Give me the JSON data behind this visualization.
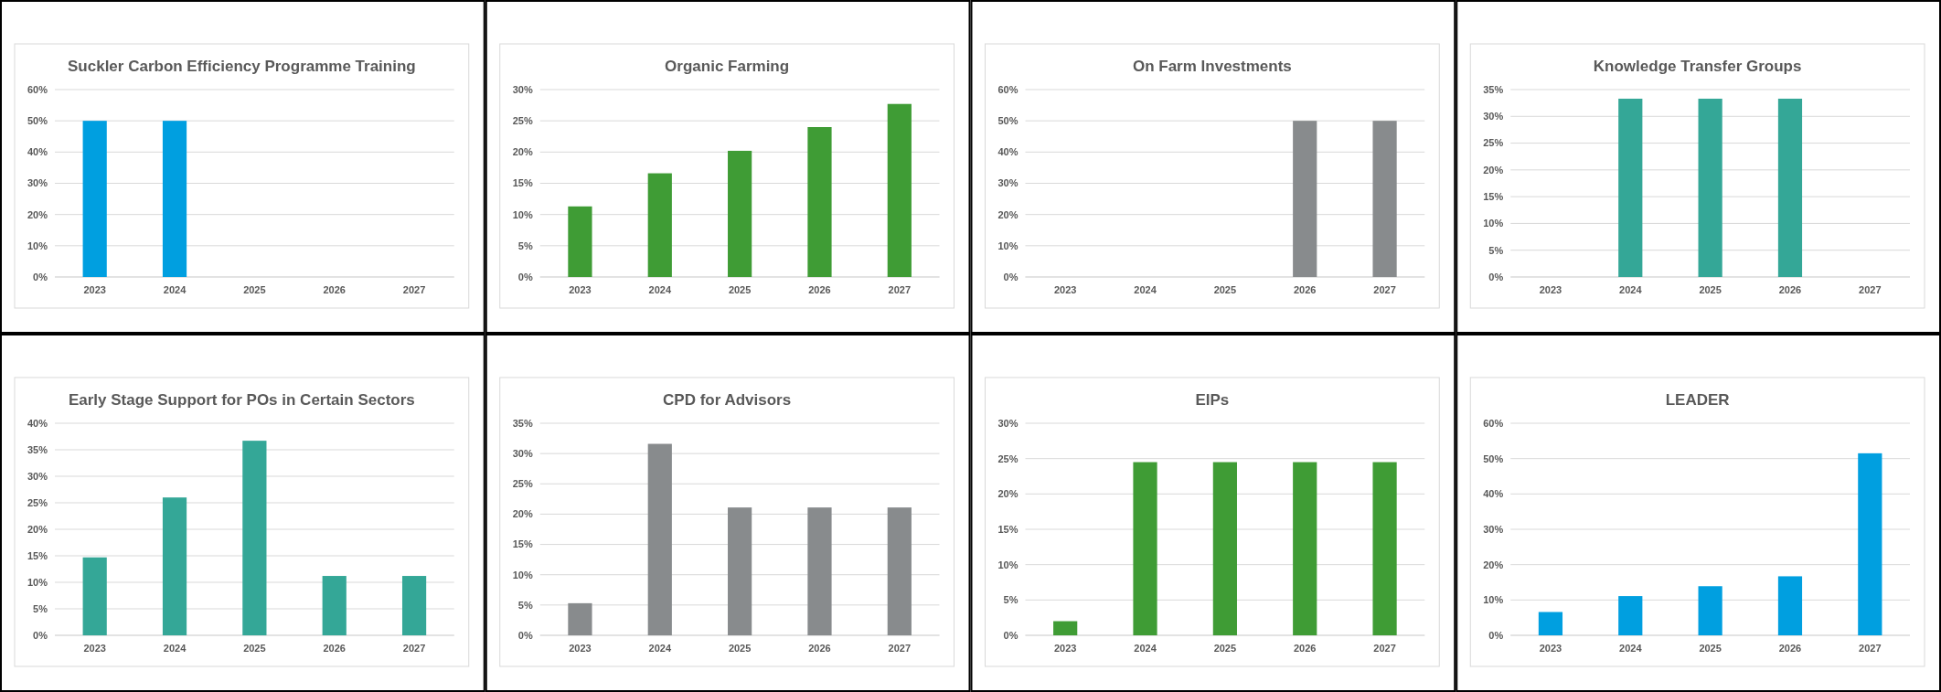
{
  "chart_data": [
    {
      "type": "bar",
      "title": "Suckler Carbon Efficiency Programme Training",
      "categories": [
        "2023",
        "2024",
        "2025",
        "2026",
        "2027"
      ],
      "values": [
        50,
        50,
        0,
        0,
        0
      ],
      "color": "#009fe0",
      "ylim": [
        0,
        60
      ],
      "yticks": [
        {
          "value": 0,
          "label": "0%"
        },
        {
          "value": 10,
          "label": "10%"
        },
        {
          "value": 20,
          "label": "20%"
        },
        {
          "value": 30,
          "label": "30%"
        },
        {
          "value": 40,
          "label": "40%"
        },
        {
          "value": 50,
          "label": "50%"
        },
        {
          "value": 60,
          "label": "60%"
        }
      ],
      "grid": "y"
    },
    {
      "type": "bar",
      "title": "Organic Farming",
      "categories": [
        "2023",
        "2024",
        "2025",
        "2026",
        "2027"
      ],
      "values": [
        11.3,
        16.6,
        20.2,
        24.0,
        27.7
      ],
      "color": "#3f9c35",
      "ylim": [
        0,
        30
      ],
      "yticks": [
        {
          "value": 0,
          "label": "0%"
        },
        {
          "value": 5,
          "label": "5%"
        },
        {
          "value": 10,
          "label": "10%"
        },
        {
          "value": 15,
          "label": "15%"
        },
        {
          "value": 20,
          "label": "20%"
        },
        {
          "value": 25,
          "label": "25%"
        },
        {
          "value": 30,
          "label": "30%"
        }
      ],
      "grid": "y"
    },
    {
      "type": "bar",
      "title": "On Farm Investments",
      "categories": [
        "2023",
        "2024",
        "2025",
        "2026",
        "2027"
      ],
      "values": [
        0,
        0,
        0,
        50,
        50
      ],
      "color": "#888b8d",
      "ylim": [
        0,
        60
      ],
      "yticks": [
        {
          "value": 0,
          "label": "0%"
        },
        {
          "value": 10,
          "label": "10%"
        },
        {
          "value": 20,
          "label": "20%"
        },
        {
          "value": 30,
          "label": "30%"
        },
        {
          "value": 40,
          "label": "40%"
        },
        {
          "value": 50,
          "label": "50%"
        },
        {
          "value": 60,
          "label": "60%"
        }
      ],
      "grid": "y"
    },
    {
      "type": "bar",
      "title": "Knowledge Transfer Groups",
      "categories": [
        "2023",
        "2024",
        "2025",
        "2026",
        "2027"
      ],
      "values": [
        0,
        33.3,
        33.3,
        33.3,
        0
      ],
      "color": "#34a797",
      "ylim": [
        0,
        35
      ],
      "yticks": [
        {
          "value": 0,
          "label": "0%"
        },
        {
          "value": 5,
          "label": "5%"
        },
        {
          "value": 10,
          "label": "10%"
        },
        {
          "value": 15,
          "label": "15%"
        },
        {
          "value": 20,
          "label": "20%"
        },
        {
          "value": 25,
          "label": "25%"
        },
        {
          "value": 30,
          "label": "30%"
        },
        {
          "value": 35,
          "label": "35%"
        }
      ],
      "grid": "y"
    },
    {
      "type": "bar",
      "title": "Early Stage Support  for POs in Certain Sectors",
      "categories": [
        "2023",
        "2024",
        "2025",
        "2026",
        "2027"
      ],
      "values": [
        14.7,
        26.0,
        36.7,
        11.2,
        11.2
      ],
      "color": "#34a797",
      "ylim": [
        0,
        40
      ],
      "yticks": [
        {
          "value": 0,
          "label": "0%"
        },
        {
          "value": 5,
          "label": "5%"
        },
        {
          "value": 10,
          "label": "10%"
        },
        {
          "value": 15,
          "label": "15%"
        },
        {
          "value": 20,
          "label": "20%"
        },
        {
          "value": 25,
          "label": "25%"
        },
        {
          "value": 30,
          "label": "30%"
        },
        {
          "value": 35,
          "label": "35%"
        },
        {
          "value": 40,
          "label": "40%"
        }
      ],
      "grid": "y"
    },
    {
      "type": "bar",
      "title": "CPD for Advisors",
      "categories": [
        "2023",
        "2024",
        "2025",
        "2026",
        "2027"
      ],
      "values": [
        5.3,
        31.6,
        21.1,
        21.1,
        21.1
      ],
      "color": "#888b8d",
      "ylim": [
        0,
        35
      ],
      "yticks": [
        {
          "value": 0,
          "label": "0%"
        },
        {
          "value": 5,
          "label": "5%"
        },
        {
          "value": 10,
          "label": "10%"
        },
        {
          "value": 15,
          "label": "15%"
        },
        {
          "value": 20,
          "label": "20%"
        },
        {
          "value": 25,
          "label": "25%"
        },
        {
          "value": 30,
          "label": "30%"
        },
        {
          "value": 35,
          "label": "35%"
        }
      ],
      "grid": "y"
    },
    {
      "type": "bar",
      "title": "EIPs",
      "categories": [
        "2023",
        "2024",
        "2025",
        "2026",
        "2027"
      ],
      "values": [
        2.0,
        24.5,
        24.5,
        24.5,
        24.5
      ],
      "color": "#3f9c35",
      "ylim": [
        0,
        30
      ],
      "yticks": [
        {
          "value": 0,
          "label": "0%"
        },
        {
          "value": 5,
          "label": "5%"
        },
        {
          "value": 10,
          "label": "10%"
        },
        {
          "value": 15,
          "label": "15%"
        },
        {
          "value": 20,
          "label": "20%"
        },
        {
          "value": 25,
          "label": "25%"
        },
        {
          "value": 30,
          "label": "30%"
        }
      ],
      "grid": "y"
    },
    {
      "type": "bar",
      "title": "LEADER",
      "categories": [
        "2023",
        "2024",
        "2025",
        "2026",
        "2027"
      ],
      "values": [
        6.6,
        11.1,
        13.9,
        16.7,
        51.5
      ],
      "color": "#009fe0",
      "ylim": [
        0,
        60
      ],
      "yticks": [
        {
          "value": 0,
          "label": "0%"
        },
        {
          "value": 10,
          "label": "10%"
        },
        {
          "value": 20,
          "label": "20%"
        },
        {
          "value": 30,
          "label": "30%"
        },
        {
          "value": 40,
          "label": "40%"
        },
        {
          "value": 50,
          "label": "50%"
        },
        {
          "value": 60,
          "label": "60%"
        }
      ],
      "grid": "y"
    }
  ]
}
